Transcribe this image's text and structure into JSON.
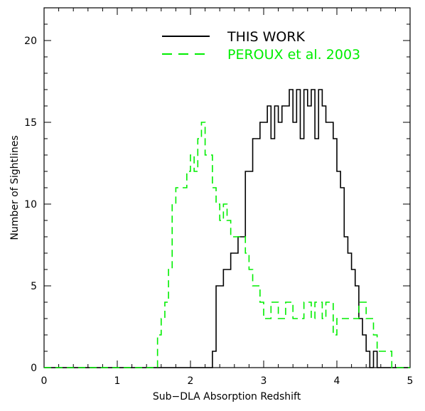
{
  "chart_data": {
    "type": "line",
    "title": "",
    "xlabel": "Sub−DLA Absorption Redshift",
    "ylabel": "Number of Sightlines",
    "xlim": [
      0,
      5
    ],
    "ylim": [
      0,
      22
    ],
    "xticks": [
      0,
      1,
      2,
      3,
      4,
      5
    ],
    "yticks": [
      0,
      5,
      10,
      15,
      20
    ],
    "legend_position": "top-center",
    "series": [
      {
        "name": "THIS WORK",
        "color": "#000000",
        "style": "solid",
        "x": [
          0.0,
          2.3,
          2.35,
          2.45,
          2.55,
          2.65,
          2.75,
          2.85,
          2.95,
          3.05,
          3.1,
          3.15,
          3.2,
          3.25,
          3.3,
          3.35,
          3.4,
          3.45,
          3.5,
          3.55,
          3.6,
          3.65,
          3.7,
          3.75,
          3.8,
          3.85,
          3.9,
          3.95,
          4.0,
          4.05,
          4.1,
          4.15,
          4.2,
          4.25,
          4.3,
          4.35,
          4.4,
          4.45,
          4.5,
          4.55,
          4.6,
          5.0
        ],
        "y": [
          0,
          1,
          5,
          6,
          7,
          8,
          12,
          14,
          15,
          16,
          14,
          16,
          15,
          16,
          16,
          17,
          15,
          17,
          14,
          17,
          16,
          17,
          14,
          17,
          16,
          15,
          15,
          14,
          12,
          11,
          8,
          7,
          6,
          5,
          3,
          2,
          1,
          0,
          1,
          0,
          0,
          0
        ]
      },
      {
        "name": "PEROUX et al. 2003",
        "color": "#00ee00",
        "style": "dashed",
        "x": [
          0.0,
          1.55,
          1.6,
          1.65,
          1.7,
          1.75,
          1.8,
          1.85,
          1.9,
          1.95,
          2.0,
          2.05,
          2.1,
          2.15,
          2.2,
          2.25,
          2.3,
          2.35,
          2.4,
          2.45,
          2.5,
          2.55,
          2.6,
          2.65,
          2.7,
          2.75,
          2.8,
          2.85,
          2.9,
          2.95,
          3.0,
          3.05,
          3.1,
          3.15,
          3.2,
          3.25,
          3.3,
          3.35,
          3.4,
          3.45,
          3.5,
          3.55,
          3.6,
          3.65,
          3.7,
          3.75,
          3.8,
          3.85,
          3.9,
          3.95,
          4.0,
          4.05,
          4.1,
          4.15,
          4.2,
          4.25,
          4.3,
          4.35,
          4.4,
          4.45,
          4.5,
          4.55,
          4.6,
          4.65,
          4.7,
          4.75,
          4.8,
          5.0
        ],
        "y": [
          0,
          2,
          3,
          4,
          6,
          10,
          11,
          11,
          11,
          12,
          13,
          12,
          14,
          15,
          13,
          13,
          11,
          10,
          9,
          10,
          9,
          8,
          8,
          8,
          8,
          7,
          6,
          5,
          5,
          4,
          3,
          3,
          4,
          4,
          3,
          3,
          4,
          4,
          3,
          3,
          3,
          4,
          4,
          3,
          4,
          4,
          3,
          4,
          4,
          2,
          3,
          3,
          3,
          3,
          3,
          3,
          4,
          4,
          3,
          3,
          2,
          1,
          1,
          1,
          1,
          0,
          0,
          0
        ]
      }
    ]
  }
}
